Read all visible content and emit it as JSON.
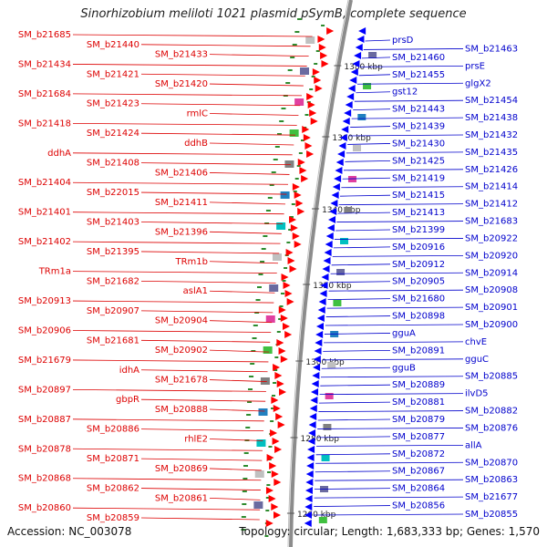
{
  "title": "Sinorhizobium meliloti 1021 plasmid pSymB, complete sequence",
  "footer": {
    "accession": "Accession: NC_003078",
    "summary": "Topology: circular; Length: 1,683,333 bp; Genes: 1,570"
  },
  "colors": {
    "forward_label": "#dd0000",
    "reverse_label": "#0000cc",
    "forward_feature": "#ff0000",
    "reverse_feature": "#0000ff",
    "backbone": "#8c8c8c",
    "tick": "#2e8b2e"
  },
  "scale_ticks": [
    "1380 kbp",
    "1360 kbp",
    "1340 kbp",
    "1320 kbp",
    "1300 kbp",
    "1280 kbp",
    "1260 kbp"
  ],
  "left_labels": [
    "SM_b21685",
    "SM_b21440",
    "SM_b21433",
    "SM_b21434",
    "SM_b21421",
    "SM_b21420",
    "SM_b21684",
    "SM_b21423",
    "rmlC",
    "SM_b21418",
    "SM_b21424",
    "ddhB",
    "ddhA",
    "SM_b21408",
    "SM_b21406",
    "SM_b21404",
    "SM_b22015",
    "SM_b21411",
    "SM_b21401",
    "SM_b21403",
    "SM_b21396",
    "SM_b21402",
    "SM_b21395",
    "TRm1b",
    "TRm1a",
    "SM_b21682",
    "aslA1",
    "SM_b20913",
    "SM_b20907",
    "SM_b20904",
    "SM_b20906",
    "SM_b21681",
    "SM_b20902",
    "SM_b21679",
    "idhA",
    "SM_b21678",
    "SM_b20897",
    "gbpR",
    "SM_b20888",
    "SM_b20887",
    "SM_b20886",
    "rhlE2",
    "SM_b20878",
    "SM_b20871",
    "SM_b20869",
    "SM_b20868",
    "SM_b20862",
    "SM_b20861",
    "SM_b20860",
    "SM_b20859"
  ],
  "right_labels": [
    "prsD",
    "SM_b21463",
    "SM_b21460",
    "prsE",
    "SM_b21455",
    "glgX2",
    "gst12",
    "SM_b21454",
    "SM_b21443",
    "SM_b21438",
    "SM_b21439",
    "SM_b21432",
    "SM_b21430",
    "SM_b21435",
    "SM_b21425",
    "SM_b21426",
    "SM_b21419",
    "SM_b21414",
    "SM_b21415",
    "SM_b21412",
    "SM_b21413",
    "SM_b21683",
    "SM_b21399",
    "SM_b20922",
    "SM_b20916",
    "SM_b20920",
    "SM_b20912",
    "SM_b20914",
    "SM_b20905",
    "SM_b20908",
    "SM_b21680",
    "SM_b20901",
    "SM_b20898",
    "SM_b20900",
    "gguA",
    "chvE",
    "SM_b20891",
    "gguC",
    "gguB",
    "SM_b20885",
    "SM_b20889",
    "ilvD5",
    "SM_b20881",
    "SM_b20882",
    "SM_b20879",
    "SM_b20876",
    "SM_b20877",
    "allA",
    "SM_b20872",
    "SM_b20870",
    "SM_b20867",
    "SM_b20863",
    "SM_b20864",
    "SM_b21677",
    "SM_b20856",
    "SM_b20855"
  ]
}
